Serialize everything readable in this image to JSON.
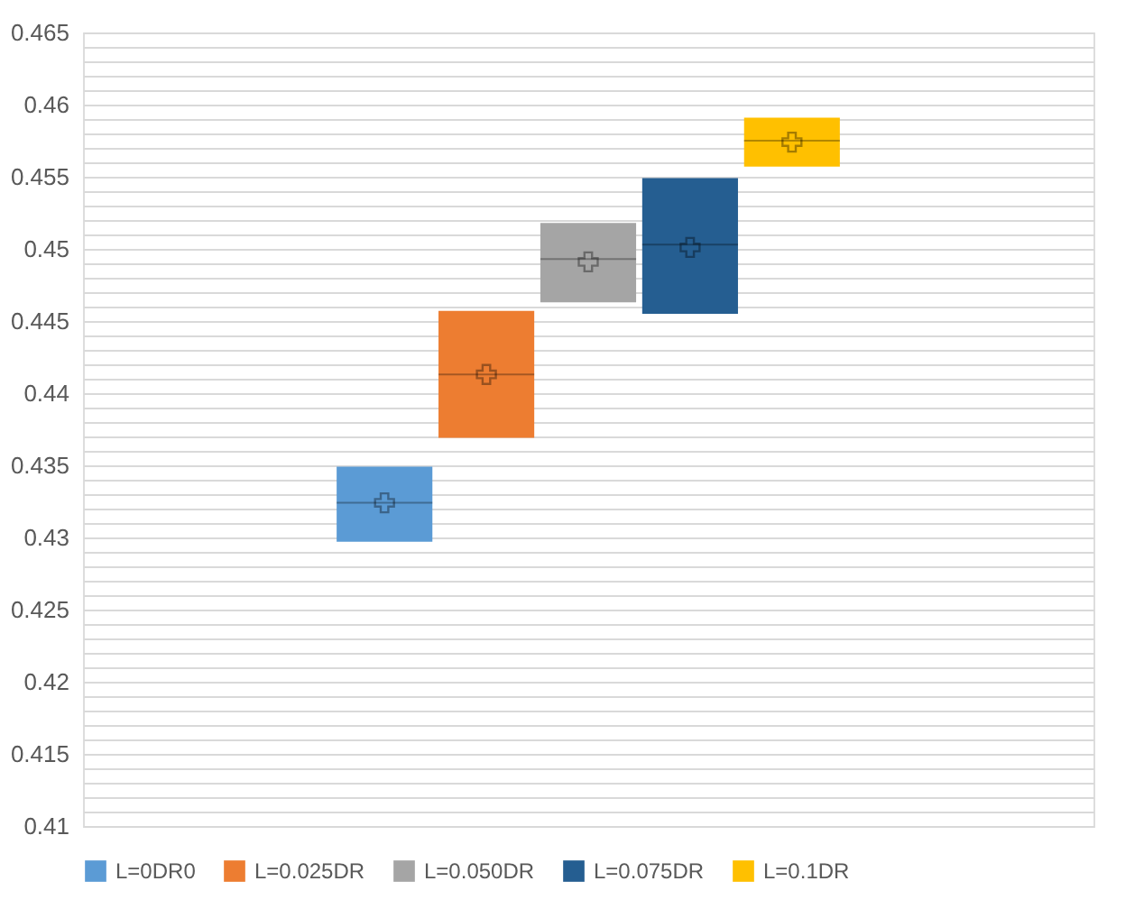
{
  "chart_data": {
    "type": "box",
    "categories": [
      null
    ],
    "series": [
      {
        "name": "L=0DR0",
        "color": "#5b9bd5",
        "boxes": [
          {
            "low": 0.4297,
            "q1": 0.4297,
            "median": 0.4324,
            "q3": 0.4349,
            "high": 0.4349,
            "mean": 0.4324
          }
        ]
      },
      {
        "name": "L=0.025DR",
        "color": "#ed7d31",
        "boxes": [
          {
            "low": 0.4369,
            "q1": 0.4369,
            "median": 0.4413,
            "q3": 0.4457,
            "high": 0.4457,
            "mean": 0.4413
          }
        ]
      },
      {
        "name": "L=0.050DR",
        "color": "#a5a5a5",
        "boxes": [
          {
            "low": 0.4463,
            "q1": 0.4463,
            "median": 0.4493,
            "q3": 0.4518,
            "high": 0.4518,
            "mean": 0.4491
          }
        ]
      },
      {
        "name": "L=0.075DR",
        "color": "#255e91",
        "boxes": [
          {
            "low": 0.4455,
            "q1": 0.4455,
            "median": 0.4503,
            "q3": 0.4549,
            "high": 0.4549,
            "mean": 0.4501
          }
        ]
      },
      {
        "name": "L=0.1DR",
        "color": "#ffc000",
        "boxes": [
          {
            "low": 0.4557,
            "q1": 0.4557,
            "median": 0.4575,
            "q3": 0.4591,
            "high": 0.4591,
            "mean": 0.4574
          }
        ]
      }
    ],
    "ylim": [
      0.41,
      0.465
    ],
    "yticks": [
      0.41,
      {
        "value": 0.411,
        "label": null
      },
      {
        "value": 0.412,
        "label": null
      },
      {
        "value": 0.413,
        "label": null
      },
      {
        "value": 0.414,
        "label": null
      },
      0.415,
      {
        "value": 0.416,
        "label": null
      },
      {
        "value": 0.417,
        "label": null
      },
      {
        "value": 0.418,
        "label": null
      },
      {
        "value": 0.419,
        "label": null
      },
      0.42,
      {
        "value": 0.421,
        "label": null
      },
      {
        "value": 0.422,
        "label": null
      },
      {
        "value": 0.423,
        "label": null
      },
      {
        "value": 0.424,
        "label": null
      },
      0.425,
      {
        "value": 0.426,
        "label": null
      },
      {
        "value": 0.427,
        "label": null
      },
      {
        "value": 0.428,
        "label": null
      },
      {
        "value": 0.429,
        "label": null
      },
      0.43,
      {
        "value": 0.431,
        "label": null
      },
      {
        "value": 0.432,
        "label": null
      },
      {
        "value": 0.433,
        "label": null
      },
      {
        "value": 0.434,
        "label": null
      },
      0.435,
      {
        "value": 0.436,
        "label": null
      },
      {
        "value": 0.437,
        "label": null
      },
      {
        "value": 0.438,
        "label": null
      },
      {
        "value": 0.439,
        "label": null
      },
      0.44,
      {
        "value": 0.441,
        "label": null
      },
      {
        "value": 0.442,
        "label": null
      },
      {
        "value": 0.443,
        "label": null
      },
      {
        "value": 0.444,
        "label": null
      },
      0.445,
      {
        "value": 0.446,
        "label": null
      },
      {
        "value": 0.447,
        "label": null
      },
      {
        "value": 0.448,
        "label": null
      },
      {
        "value": 0.449,
        "label": null
      },
      0.45,
      {
        "value": 0.451,
        "label": null
      },
      {
        "value": 0.452,
        "label": null
      },
      {
        "value": 0.453,
        "label": null
      },
      {
        "value": 0.454,
        "label": null
      },
      0.455,
      {
        "value": 0.456,
        "label": null
      },
      {
        "value": 0.457,
        "label": null
      },
      {
        "value": 0.458,
        "label": null
      },
      {
        "value": 0.459,
        "label": null
      },
      0.46,
      {
        "value": 0.461,
        "label": null
      },
      {
        "value": 0.462,
        "label": null
      },
      {
        "value": 0.463,
        "label": null
      },
      {
        "value": 0.464,
        "label": null
      },
      0.465
    ],
    "grid": "y",
    "legend": "bottom",
    "marker": "cross",
    "tick_labels": "y"
  }
}
